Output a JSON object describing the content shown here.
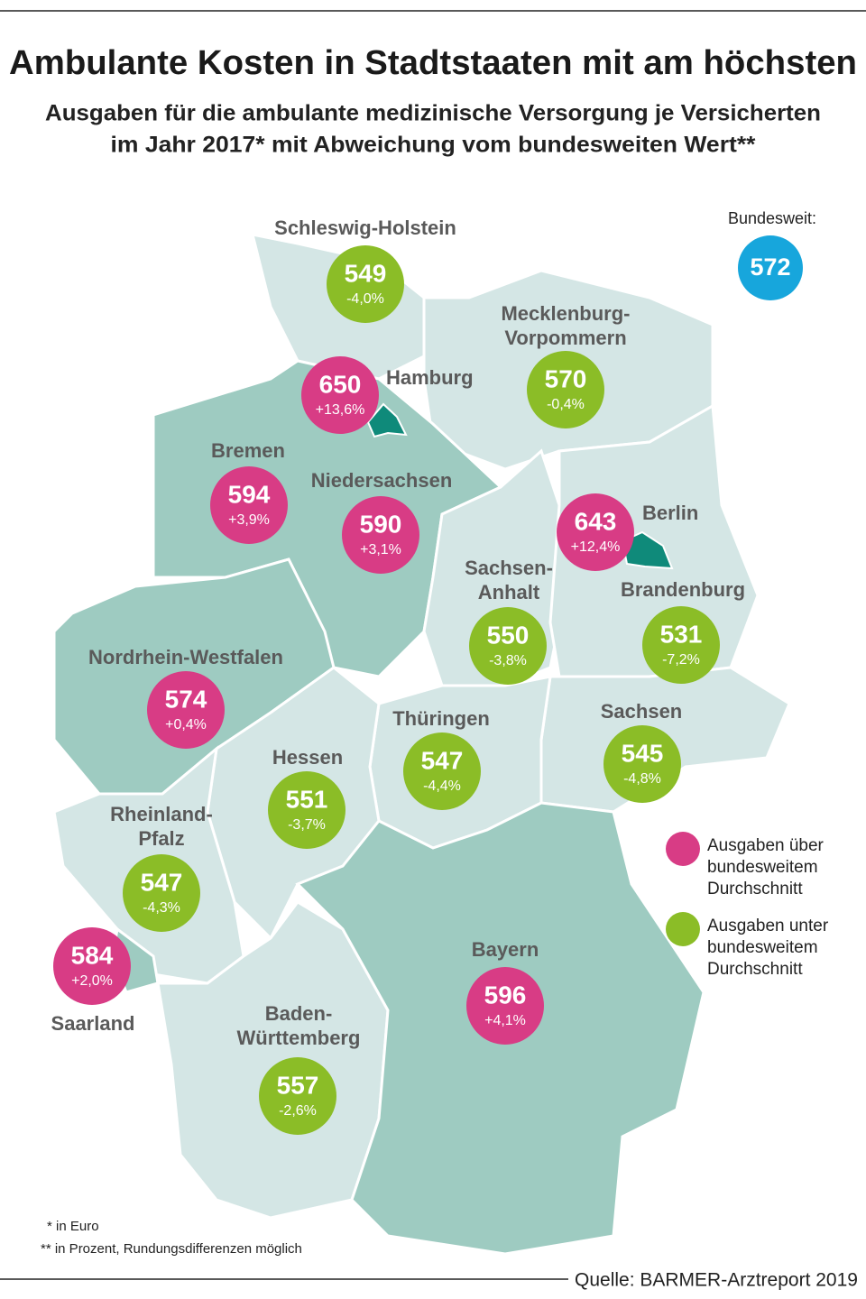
{
  "header": {
    "title": "Ambulante Kosten in Stadtstaaten mit am höchsten",
    "subtitle": [
      "Ausgaben für die ambulante medizinische Versorgung je Versicherten",
      "im Jahr 2017* mit Abweichung vom bundesweiten Wert**"
    ]
  },
  "national": {
    "label": "Bundesweit:",
    "value": 572,
    "color": "#17a6dc"
  },
  "states": [
    {
      "name": [
        "Schleswig-Holstein"
      ],
      "value": 549,
      "deviation": "-4,0%",
      "color": "#8bbd27"
    },
    {
      "name": [
        "Hamburg"
      ],
      "value": 650,
      "deviation": "+13,6%",
      "color": "#d83c85"
    },
    {
      "name": [
        "Mecklenburg-",
        "Vorpommern"
      ],
      "value": 570,
      "deviation": "-0,4%",
      "color": "#8bbd27"
    },
    {
      "name": [
        "Bremen"
      ],
      "value": 594,
      "deviation": "+3,9%",
      "color": "#d83c85"
    },
    {
      "name": [
        "Niedersachsen"
      ],
      "value": 590,
      "deviation": "+3,1%",
      "color": "#d83c85"
    },
    {
      "name": [
        "Berlin"
      ],
      "value": 643,
      "deviation": "+12,4%",
      "color": "#d83c85"
    },
    {
      "name": [
        "Sachsen-",
        "Anhalt"
      ],
      "value": 550,
      "deviation": "-3,8%",
      "color": "#8bbd27"
    },
    {
      "name": [
        "Brandenburg"
      ],
      "value": 531,
      "deviation": "-7,2%",
      "color": "#8bbd27"
    },
    {
      "name": [
        "Nordrhein-Westfalen"
      ],
      "value": 574,
      "deviation": "+0,4%",
      "color": "#d83c85"
    },
    {
      "name": [
        "Thüringen"
      ],
      "value": 547,
      "deviation": "-4,4%",
      "color": "#8bbd27"
    },
    {
      "name": [
        "Sachsen"
      ],
      "value": 545,
      "deviation": "-4,8%",
      "color": "#8bbd27"
    },
    {
      "name": [
        "Hessen"
      ],
      "value": 551,
      "deviation": "-3,7%",
      "color": "#8bbd27"
    },
    {
      "name": [
        "Rheinland-",
        "Pfalz"
      ],
      "value": 547,
      "deviation": "-4,3%",
      "color": "#8bbd27"
    },
    {
      "name": [
        "Saarland"
      ],
      "value": 584,
      "deviation": "+2,0%",
      "color": "#d83c85"
    },
    {
      "name": [
        "Bayern"
      ],
      "value": 596,
      "deviation": "+4,1%",
      "color": "#d83c85"
    },
    {
      "name": [
        "Baden-",
        "Württemberg"
      ],
      "value": 557,
      "deviation": "-2,6%",
      "color": "#8bbd27"
    }
  ],
  "legend": [
    {
      "lines": [
        "Ausgaben über",
        "bundesweitem",
        "Durchschnitt"
      ],
      "color": "#d83c85"
    },
    {
      "lines": [
        "Ausgaben unter",
        "bundesweitem",
        "Durchschnitt"
      ],
      "color": "#8bbd27"
    }
  ],
  "footnotes": [
    "* in Euro",
    "** in Prozent, Rundungsdifferenzen möglich"
  ],
  "source": "Quelle: BARMER-Arztreport 2019"
}
